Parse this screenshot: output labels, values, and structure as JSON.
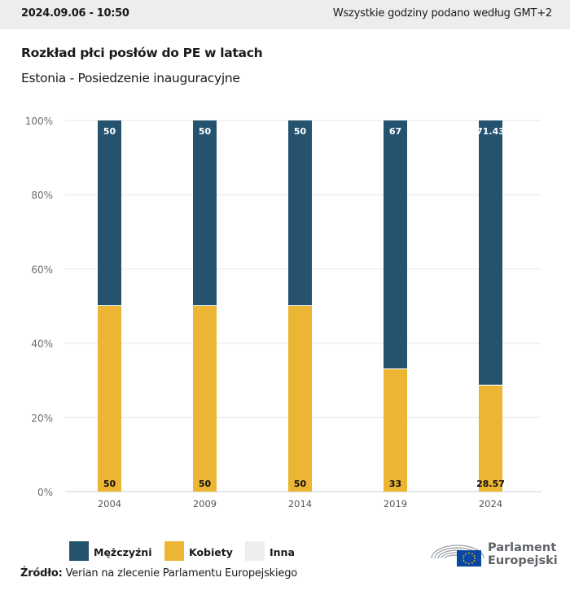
{
  "header": {
    "datetime": "2024.09.06 - 10:50",
    "timezone_note": "Wszystkie godziny podano według GMT+2"
  },
  "title": "Rozkład płci posłów do PE w latach",
  "subtitle": "Estonia - Posiedzenie inauguracyjne",
  "legend": [
    {
      "label": "Mężczyźni",
      "color": "#25536f"
    },
    {
      "label": "Kobiety",
      "color": "#ecb534"
    },
    {
      "label": "Inna",
      "color": "#eceef0"
    }
  ],
  "source": {
    "label": "Źródło:",
    "text": "Verian na zlecenie Parlamentu Europejskiego"
  },
  "logo": {
    "line1": "Parlament",
    "line2": "Europejski"
  },
  "chart_data": {
    "type": "bar",
    "stacked": true,
    "normalized_percent": true,
    "title": "Rozkład płci posłów do PE w latach",
    "subtitle": "Estonia - Posiedzenie inauguracyjne",
    "xlabel": "",
    "ylabel": "",
    "categories": [
      "2004",
      "2009",
      "2014",
      "2019",
      "2024"
    ],
    "series": [
      {
        "name": "Kobiety",
        "color": "#ecb534",
        "values": [
          50,
          50,
          50,
          33,
          28.57
        ],
        "labels": [
          "50",
          "50",
          "50",
          "33",
          "28.57"
        ]
      },
      {
        "name": "Mężczyźni",
        "color": "#25536f",
        "values": [
          50,
          50,
          50,
          67,
          71.43
        ],
        "labels": [
          "50",
          "50",
          "50",
          "67",
          "71.43"
        ]
      },
      {
        "name": "Inna",
        "color": "#eceef0",
        "values": [
          0,
          0,
          0,
          0,
          0
        ],
        "labels": []
      }
    ],
    "ylim": [
      0,
      100
    ],
    "yticks": [
      0,
      20,
      40,
      60,
      80,
      100
    ],
    "ytick_labels": [
      "0%",
      "20%",
      "40%",
      "60%",
      "80%",
      "100%"
    ],
    "grid": true,
    "legend_position": "bottom-left"
  }
}
